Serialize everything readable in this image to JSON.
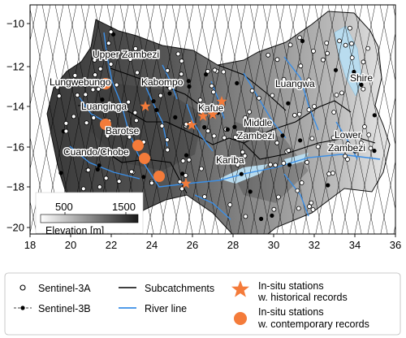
{
  "map": {
    "x_ticks": [
      "18",
      "20",
      "22",
      "24",
      "26",
      "28",
      "30",
      "32",
      "34",
      "36"
    ],
    "y_ticks": [
      "−10",
      "−12",
      "−14",
      "−16",
      "−18",
      "−20"
    ],
    "regions": [
      {
        "id": "upper-zambezi",
        "text": "Upper Zambezi"
      },
      {
        "id": "kabompo",
        "text": "Kabompo"
      },
      {
        "id": "lungwebungo",
        "text": "Lungwebungo"
      },
      {
        "id": "luanginga",
        "text": "Luanginga"
      },
      {
        "id": "kafue",
        "text": "Kafue"
      },
      {
        "id": "luangwa",
        "text": "Luangwa"
      },
      {
        "id": "shire",
        "text": "Shire"
      },
      {
        "id": "barotse",
        "text": "Barotse"
      },
      {
        "id": "middle-zambezi-1",
        "text": "Middle"
      },
      {
        "id": "middle-zambezi-2",
        "text": "Zambezi"
      },
      {
        "id": "lower-zambezi-1",
        "text": "Lower"
      },
      {
        "id": "lower-zambezi-2",
        "text": "Zambezi"
      },
      {
        "id": "cuando-chobe",
        "text": "Cuando/Chobe"
      },
      {
        "id": "kariba",
        "text": "Kariba"
      }
    ],
    "colorbar": {
      "tick_min": "500",
      "tick_max": "1500",
      "label": "Elevation [m]",
      "color_low": "#ffffff",
      "color_high": "#1a1a1a"
    }
  },
  "legend": {
    "s3a": "Sentinel-3A",
    "s3b": "Sentinel-3B",
    "subcatchments": "Subcatchments",
    "river": "River line",
    "hist_1": "In-situ stations",
    "hist_2": "w. historical records",
    "cont_1": "In-situ stations",
    "cont_2": "w. contemporary records"
  },
  "colors": {
    "river": "#3a8ee6",
    "lake": "#b9dcef",
    "station": "#f47b3a",
    "terrain_dark": "#2b2b2b",
    "terrain_light": "#bdbdbd"
  }
}
